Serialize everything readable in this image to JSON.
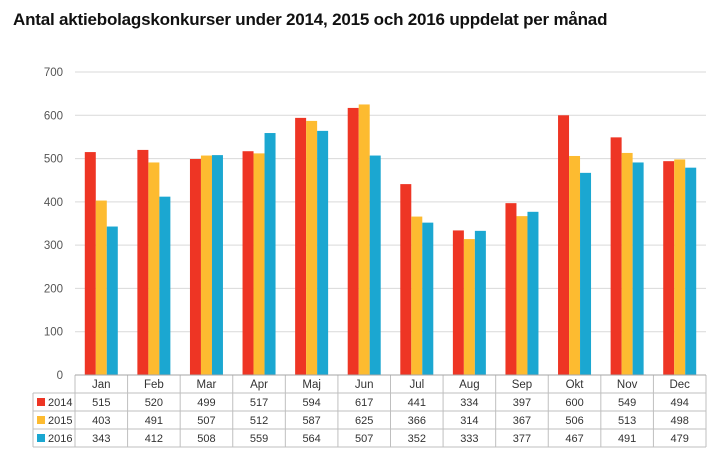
{
  "chart_data": {
    "type": "bar",
    "title": "Antal aktiebolagskonkurser under 2014, 2015 och 2016 uppdelat per månad",
    "categories": [
      "Jan",
      "Feb",
      "Mar",
      "Apr",
      "Maj",
      "Jun",
      "Jul",
      "Aug",
      "Sep",
      "Okt",
      "Nov",
      "Dec"
    ],
    "series": [
      {
        "name": "2014",
        "color": "#ee3524",
        "values": [
          515,
          520,
          499,
          517,
          594,
          617,
          441,
          334,
          397,
          600,
          549,
          494
        ]
      },
      {
        "name": "2015",
        "color": "#fdbb30",
        "values": [
          403,
          491,
          507,
          512,
          587,
          625,
          366,
          314,
          367,
          506,
          513,
          498
        ]
      },
      {
        "name": "2016",
        "color": "#1ba7d1",
        "values": [
          343,
          412,
          508,
          559,
          564,
          507,
          352,
          333,
          377,
          467,
          491,
          479
        ]
      }
    ],
    "ylim": [
      0,
      700
    ],
    "yticks": [
      0,
      100,
      200,
      300,
      400,
      500,
      600,
      700
    ],
    "grid": true,
    "legend": "data-table-below"
  }
}
